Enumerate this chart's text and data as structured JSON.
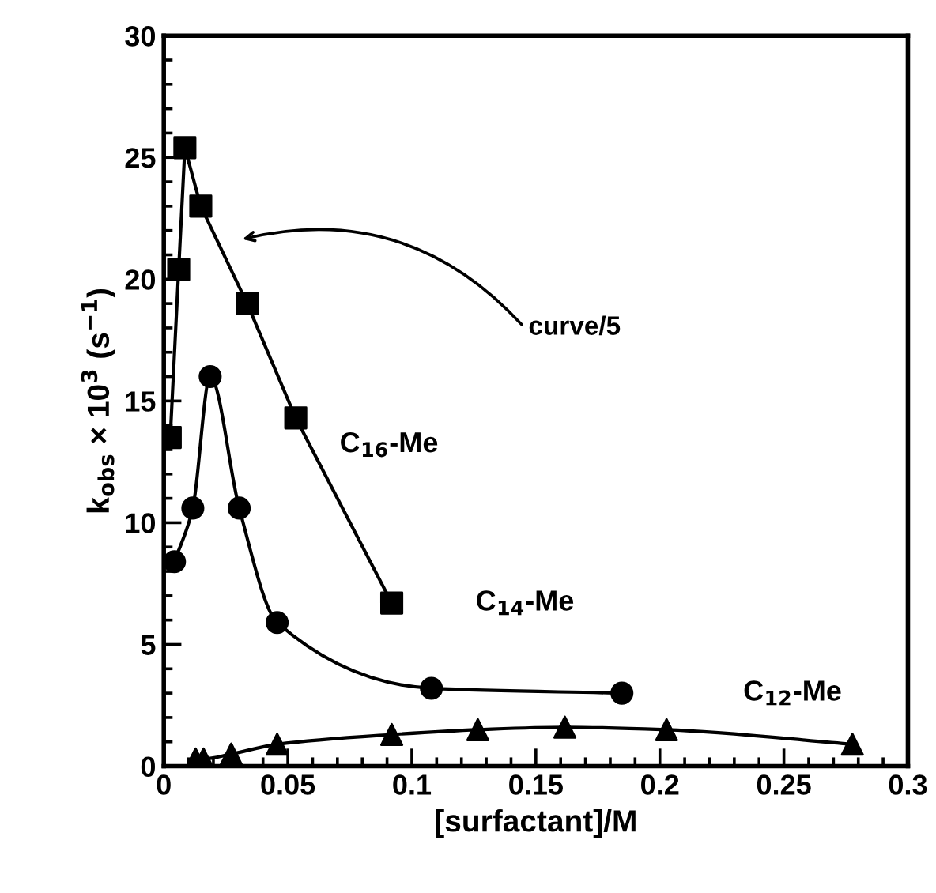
{
  "chart_data": {
    "type": "line",
    "xlabel": "[surfactant]/M",
    "ylabel": "k$_{obs}$ × 10$^{3}$ (s$^{−1}$)",
    "xlim": [
      0,
      0.3
    ],
    "xticks": [
      0,
      0.05,
      0.1,
      0.15,
      0.2,
      0.25,
      0.3
    ],
    "ylim": [
      0,
      30
    ],
    "yticks": [
      0,
      5,
      10,
      15,
      20,
      25,
      30
    ],
    "grid": false,
    "legend": false,
    "line_style": "solid",
    "series": [
      {
        "name": "C$_{16}$-Me",
        "color": "#000000",
        "marker": "square",
        "x": [
          0.0026,
          0.006,
          0.0085,
          0.0149,
          0.0336,
          0.0532,
          0.0919
        ],
        "values": [
          13.5,
          20.4,
          25.4,
          23.0,
          19.0,
          14.3,
          6.7
        ]
      },
      {
        "name": "C$_{14}$-Me",
        "color": "#000000",
        "marker": "circle",
        "x": [
          0.0043,
          0.0117,
          0.0187,
          0.0304,
          0.0457,
          0.1079,
          0.1847
        ],
        "values": [
          8.4,
          10.6,
          16.0,
          10.6,
          5.9,
          3.2,
          3.0
        ]
      },
      {
        "name": "C$_{12}$-Me",
        "color": "#000000",
        "marker": "triangle",
        "x": [
          0.0128,
          0.016,
          0.0272,
          0.0457,
          0.0919,
          0.1266,
          0.1617,
          0.2027,
          0.2776
        ],
        "values": [
          0.3,
          0.3,
          0.5,
          0.9,
          1.3,
          1.5,
          1.6,
          1.5,
          0.9
        ]
      }
    ],
    "annotations": [
      "curve/5"
    ]
  }
}
